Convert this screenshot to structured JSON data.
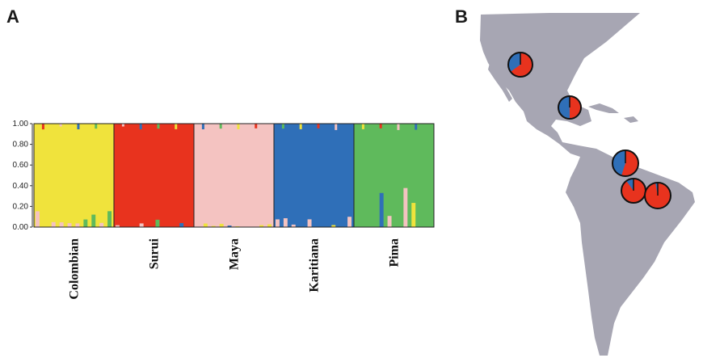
{
  "figure": {
    "panel_a_label": "A",
    "panel_b_label": "B"
  },
  "chart_data": {
    "type": "bar",
    "ylim": [
      0,
      1
    ],
    "ticks": [
      "0.00",
      "0.20",
      "0.40",
      "0.60",
      "0.80",
      "1.00"
    ],
    "cluster_colors": {
      "yellow": "#f0e33c",
      "red": "#e8331e",
      "pink": "#f4c3c1",
      "blue": "#2f6fb8",
      "green": "#5fba5c"
    },
    "populations": [
      {
        "name": "Colombian",
        "dominant": "yellow",
        "share": 0.95
      },
      {
        "name": "Surui",
        "dominant": "red",
        "share": 0.98
      },
      {
        "name": "Maya",
        "dominant": "pink",
        "share": 0.99
      },
      {
        "name": "Karitiana",
        "dominant": "blue",
        "share": 0.97
      },
      {
        "name": "Pima",
        "dominant": "green",
        "share": 0.85
      }
    ]
  },
  "map": {
    "land_color": "#a7a6b3",
    "pie_colors": {
      "a": "#e8331e",
      "b": "#2f6fb8"
    },
    "pies": [
      {
        "name": "pie-north-mexico",
        "blue_fraction": 0.35
      },
      {
        "name": "pie-southern-mexico",
        "blue_fraction": 0.5
      },
      {
        "name": "pie-amazon-west",
        "blue_fraction": 0.45
      },
      {
        "name": "pie-amazon-south",
        "blue_fraction": 0.1
      },
      {
        "name": "pie-amazon-east",
        "blue_fraction": 0.03
      }
    ]
  }
}
